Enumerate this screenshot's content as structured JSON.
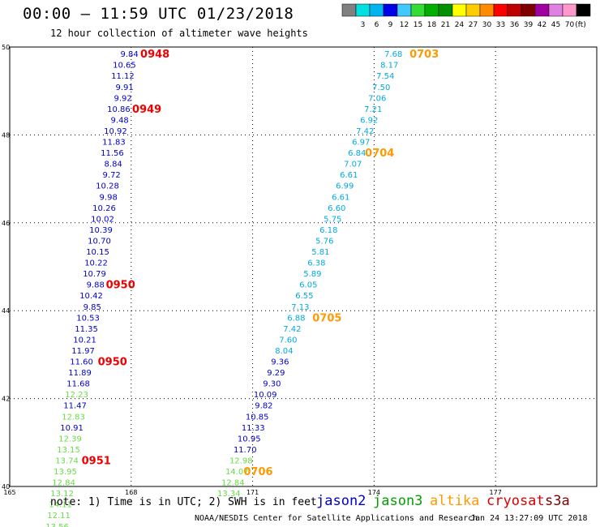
{
  "header": {
    "title": "00:00 – 11:59 UTC 01/23/2018",
    "subtitle": "12 hour collection of altimeter wave heights"
  },
  "colorbar": {
    "colors": [
      "#808080",
      "#00e0e0",
      "#00b4f0",
      "#0000e6",
      "#40c8ff",
      "#33dd33",
      "#00b000",
      "#009000",
      "#ffff00",
      "#ffcc00",
      "#ff8c00",
      "#ff0000",
      "#c00000",
      "#800000",
      "#a000a0",
      "#e080e0",
      "#ff99cc",
      "#000000"
    ],
    "tick_labels": [
      "3",
      "6",
      "9",
      "12",
      "15",
      "18",
      "21",
      "24",
      "27",
      "30",
      "33",
      "36",
      "39",
      "42",
      "45",
      "70"
    ],
    "unit": "(ft)"
  },
  "footer": {
    "note": "note: 1) Time is in UTC; 2) SWH is in feet",
    "satellites": [
      {
        "name": "jason2",
        "color": "#0000cc"
      },
      {
        "name": "jason3",
        "color": "#00a000"
      },
      {
        "name": "altika",
        "color": "#ff9900"
      },
      {
        "name": "cryosat",
        "color": "#dd0000"
      },
      {
        "name": "s3a",
        "color": "#800000"
      }
    ],
    "credit": "NOAA/NESDIS Center for Satellite Applications and Research",
    "timestamp": "Jan 24 13:27:09 UTC 2018"
  },
  "chart_data": {
    "type": "scatter",
    "title": "00:00 – 11:59 UTC 01/23/2018",
    "subtitle": "12 hour collection of altimeter wave heights",
    "xlim": [
      165,
      179.5
    ],
    "ylim": [
      40,
      50
    ],
    "x_ticks": [
      "165",
      "168",
      "171",
      "174",
      "177"
    ],
    "y_ticks": [
      "40",
      "42",
      "44",
      "46",
      "48",
      "50"
    ],
    "grid": true,
    "legend": "bottom",
    "colors": {
      "jason2_dark": "#0000cc",
      "jason3_green": "#66dd44",
      "altika_cyan": "#00aadd",
      "time_red": "#ee0000",
      "time_orange": "#ff9900"
    },
    "series": [
      {
        "name": "jason2",
        "points": [
          {
            "x": 168.18,
            "y": 49.85,
            "v": "9.84",
            "c": "jason2_dark"
          },
          {
            "x": 168.12,
            "y": 49.6,
            "v": "10.65",
            "c": "jason2_dark"
          },
          {
            "x": 168.08,
            "y": 49.35,
            "v": "11.12",
            "c": "jason2_dark"
          },
          {
            "x": 168.06,
            "y": 49.1,
            "v": "9.91",
            "c": "jason2_dark"
          },
          {
            "x": 168.02,
            "y": 48.85,
            "v": "9.92",
            "c": "jason2_dark"
          },
          {
            "x": 167.98,
            "y": 48.6,
            "v": "10.86",
            "c": "jason2_dark"
          },
          {
            "x": 167.94,
            "y": 48.35,
            "v": "9.48",
            "c": "jason2_dark"
          },
          {
            "x": 167.9,
            "y": 48.1,
            "v": "10.92",
            "c": "jason2_dark"
          },
          {
            "x": 167.86,
            "y": 47.85,
            "v": "11.83",
            "c": "jason2_dark"
          },
          {
            "x": 167.82,
            "y": 47.6,
            "v": "11.56",
            "c": "jason2_dark"
          },
          {
            "x": 167.78,
            "y": 47.35,
            "v": "8.84",
            "c": "jason2_dark"
          },
          {
            "x": 167.74,
            "y": 47.1,
            "v": "9.72",
            "c": "jason2_dark"
          },
          {
            "x": 167.7,
            "y": 46.85,
            "v": "10.28",
            "c": "jason2_dark"
          },
          {
            "x": 167.66,
            "y": 46.6,
            "v": "9.98",
            "c": "jason2_dark"
          },
          {
            "x": 167.62,
            "y": 46.35,
            "v": "10.26",
            "c": "jason2_dark"
          },
          {
            "x": 167.58,
            "y": 46.1,
            "v": "10.02",
            "c": "jason2_dark"
          },
          {
            "x": 167.54,
            "y": 45.85,
            "v": "10.39",
            "c": "jason2_dark"
          },
          {
            "x": 167.5,
            "y": 45.6,
            "v": "10.70",
            "c": "jason2_dark"
          },
          {
            "x": 167.46,
            "y": 45.35,
            "v": "10.15",
            "c": "jason2_dark"
          },
          {
            "x": 167.42,
            "y": 45.1,
            "v": "10.22",
            "c": "jason2_dark"
          },
          {
            "x": 167.38,
            "y": 44.85,
            "v": "10.79",
            "c": "jason2_dark"
          },
          {
            "x": 167.34,
            "y": 44.6,
            "v": "9.88",
            "c": "jason2_dark"
          },
          {
            "x": 167.3,
            "y": 44.35,
            "v": "10.42",
            "c": "jason2_dark"
          },
          {
            "x": 167.26,
            "y": 44.1,
            "v": "9.85",
            "c": "jason2_dark"
          },
          {
            "x": 167.22,
            "y": 43.85,
            "v": "10.53",
            "c": "jason2_dark"
          },
          {
            "x": 167.18,
            "y": 43.6,
            "v": "11.35",
            "c": "jason2_dark"
          },
          {
            "x": 167.14,
            "y": 43.35,
            "v": "10.21",
            "c": "jason2_dark"
          },
          {
            "x": 167.1,
            "y": 43.1,
            "v": "11.97",
            "c": "jason2_dark"
          },
          {
            "x": 167.06,
            "y": 42.85,
            "v": "11.60",
            "c": "jason2_dark"
          },
          {
            "x": 167.02,
            "y": 42.6,
            "v": "11.89",
            "c": "jason2_dark"
          },
          {
            "x": 166.98,
            "y": 42.35,
            "v": "11.68",
            "c": "jason2_dark"
          },
          {
            "x": 166.94,
            "y": 42.1,
            "v": "12.23",
            "c": "jason3_green"
          },
          {
            "x": 166.9,
            "y": 41.85,
            "v": "11.47",
            "c": "jason2_dark"
          },
          {
            "x": 166.86,
            "y": 41.6,
            "v": "12.83",
            "c": "jason3_green"
          },
          {
            "x": 166.82,
            "y": 41.35,
            "v": "10.91",
            "c": "jason2_dark"
          },
          {
            "x": 166.78,
            "y": 41.1,
            "v": "12.39",
            "c": "jason3_green"
          },
          {
            "x": 166.74,
            "y": 40.85,
            "v": "13.15",
            "c": "jason3_green"
          },
          {
            "x": 166.7,
            "y": 40.6,
            "v": "13.74",
            "c": "jason3_green"
          },
          {
            "x": 166.66,
            "y": 40.35,
            "v": "13.95",
            "c": "jason3_green"
          },
          {
            "x": 166.62,
            "y": 40.1,
            "v": "12.84",
            "c": "jason3_green"
          },
          {
            "x": 166.58,
            "y": 39.85,
            "v": "13.12",
            "c": "jason3_green"
          },
          {
            "x": 166.54,
            "y": 39.6,
            "v": "14.11",
            "c": "jason3_green"
          },
          {
            "x": 166.5,
            "y": 39.35,
            "v": "12.11",
            "c": "jason3_green"
          },
          {
            "x": 166.46,
            "y": 39.1,
            "v": "13.56",
            "c": "jason3_green"
          }
        ],
        "times": [
          {
            "x": 168.95,
            "y": 49.85,
            "v": "0948",
            "c": "time_red"
          },
          {
            "x": 168.75,
            "y": 48.6,
            "v": "0949",
            "c": "time_red"
          },
          {
            "x": 168.1,
            "y": 44.6,
            "v": "0950",
            "c": "time_red"
          },
          {
            "x": 167.9,
            "y": 42.85,
            "v": "0950",
            "c": "time_red"
          },
          {
            "x": 167.5,
            "y": 40.6,
            "v": "0951",
            "c": "time_red"
          }
        ]
      },
      {
        "name": "altika",
        "points": [
          {
            "x": 174.7,
            "y": 49.85,
            "v": "7.68",
            "c": "altika_cyan"
          },
          {
            "x": 174.6,
            "y": 49.6,
            "v": "8.17",
            "c": "altika_cyan"
          },
          {
            "x": 174.5,
            "y": 49.35,
            "v": "7.54",
            "c": "altika_cyan"
          },
          {
            "x": 174.4,
            "y": 49.1,
            "v": "7.50",
            "c": "altika_cyan"
          },
          {
            "x": 174.3,
            "y": 48.85,
            "v": "7.06",
            "c": "altika_cyan"
          },
          {
            "x": 174.2,
            "y": 48.6,
            "v": "7.21",
            "c": "altika_cyan"
          },
          {
            "x": 174.1,
            "y": 48.35,
            "v": "6.92",
            "c": "altika_cyan"
          },
          {
            "x": 174.0,
            "y": 48.1,
            "v": "7.42",
            "c": "altika_cyan"
          },
          {
            "x": 173.9,
            "y": 47.85,
            "v": "6.97",
            "c": "altika_cyan"
          },
          {
            "x": 173.8,
            "y": 47.6,
            "v": "6.84",
            "c": "altika_cyan"
          },
          {
            "x": 173.7,
            "y": 47.35,
            "v": "7.07",
            "c": "altika_cyan"
          },
          {
            "x": 173.6,
            "y": 47.1,
            "v": "6.61",
            "c": "altika_cyan"
          },
          {
            "x": 173.5,
            "y": 46.85,
            "v": "6.99",
            "c": "altika_cyan"
          },
          {
            "x": 173.4,
            "y": 46.6,
            "v": "6.61",
            "c": "altika_cyan"
          },
          {
            "x": 173.3,
            "y": 46.35,
            "v": "6.60",
            "c": "altika_cyan"
          },
          {
            "x": 173.2,
            "y": 46.1,
            "v": "5.75",
            "c": "altika_cyan"
          },
          {
            "x": 173.1,
            "y": 45.85,
            "v": "6.18",
            "c": "altika_cyan"
          },
          {
            "x": 173.0,
            "y": 45.6,
            "v": "5.76",
            "c": "altika_cyan"
          },
          {
            "x": 172.9,
            "y": 45.35,
            "v": "5.81",
            "c": "altika_cyan"
          },
          {
            "x": 172.8,
            "y": 45.1,
            "v": "6.38",
            "c": "altika_cyan"
          },
          {
            "x": 172.7,
            "y": 44.85,
            "v": "5.89",
            "c": "altika_cyan"
          },
          {
            "x": 172.6,
            "y": 44.6,
            "v": "6.05",
            "c": "altika_cyan"
          },
          {
            "x": 172.5,
            "y": 44.35,
            "v": "6.55",
            "c": "altika_cyan"
          },
          {
            "x": 172.4,
            "y": 44.1,
            "v": "7.13",
            "c": "altika_cyan"
          },
          {
            "x": 172.3,
            "y": 43.85,
            "v": "6.88",
            "c": "altika_cyan"
          },
          {
            "x": 172.2,
            "y": 43.6,
            "v": "7.42",
            "c": "altika_cyan"
          },
          {
            "x": 172.1,
            "y": 43.35,
            "v": "7.60",
            "c": "altika_cyan"
          },
          {
            "x": 172.0,
            "y": 43.1,
            "v": "8.04",
            "c": "altika_cyan"
          },
          {
            "x": 171.9,
            "y": 42.85,
            "v": "9.36",
            "c": "jason2_dark"
          },
          {
            "x": 171.8,
            "y": 42.6,
            "v": "9.29",
            "c": "jason2_dark"
          },
          {
            "x": 171.7,
            "y": 42.35,
            "v": "9.30",
            "c": "jason2_dark"
          },
          {
            "x": 171.6,
            "y": 42.1,
            "v": "10.09",
            "c": "jason2_dark"
          },
          {
            "x": 171.5,
            "y": 41.85,
            "v": "9.82",
            "c": "jason2_dark"
          },
          {
            "x": 171.4,
            "y": 41.6,
            "v": "10.85",
            "c": "jason2_dark"
          },
          {
            "x": 171.3,
            "y": 41.35,
            "v": "11.33",
            "c": "jason2_dark"
          },
          {
            "x": 171.2,
            "y": 41.1,
            "v": "10.95",
            "c": "jason2_dark"
          },
          {
            "x": 171.1,
            "y": 40.85,
            "v": "11.70",
            "c": "jason2_dark"
          },
          {
            "x": 171.0,
            "y": 40.6,
            "v": "12.98",
            "c": "jason3_green"
          },
          {
            "x": 170.9,
            "y": 40.35,
            "v": "14.07",
            "c": "jason3_green"
          },
          {
            "x": 170.8,
            "y": 40.1,
            "v": "12.84",
            "c": "jason3_green"
          },
          {
            "x": 170.7,
            "y": 39.85,
            "v": "13.34",
            "c": "jason3_green"
          }
        ],
        "times": [
          {
            "x": 175.6,
            "y": 49.85,
            "v": "0703",
            "c": "time_orange"
          },
          {
            "x": 174.5,
            "y": 47.6,
            "v": "0704",
            "c": "time_orange"
          },
          {
            "x": 173.2,
            "y": 43.85,
            "v": "0705",
            "c": "time_orange"
          },
          {
            "x": 171.5,
            "y": 40.35,
            "v": "0706",
            "c": "time_orange"
          }
        ]
      }
    ]
  }
}
